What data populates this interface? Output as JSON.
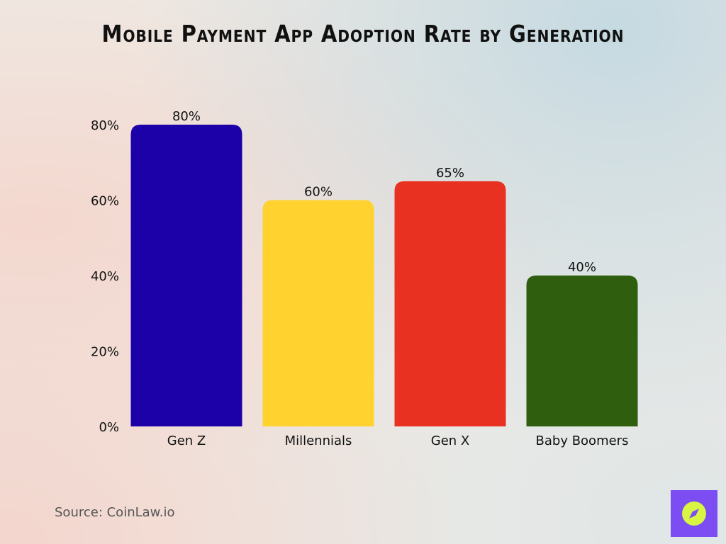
{
  "title": "Mobile Payment App Adoption Rate by Generation",
  "source": "Source: CoinLaw.io",
  "logo_icon": "compass-icon",
  "chart_data": {
    "type": "bar",
    "title": "Mobile Payment App Adoption Rate by Generation",
    "categories": [
      "Gen Z",
      "Millennials",
      "Gen X",
      "Baby Boomers"
    ],
    "values": [
      80,
      60,
      65,
      40
    ],
    "value_labels": [
      "80%",
      "60%",
      "65%",
      "40%"
    ],
    "colors": [
      "#1c00a8",
      "#ffd230",
      "#e93121",
      "#2e5e0e"
    ],
    "ylim": [
      0,
      80
    ],
    "yticks": [
      0,
      20,
      40,
      60,
      80
    ],
    "ytick_labels": [
      "0%",
      "20%",
      "40%",
      "60%",
      "80%"
    ],
    "xlabel": "",
    "ylabel": "",
    "grid": false,
    "legend": "none"
  }
}
